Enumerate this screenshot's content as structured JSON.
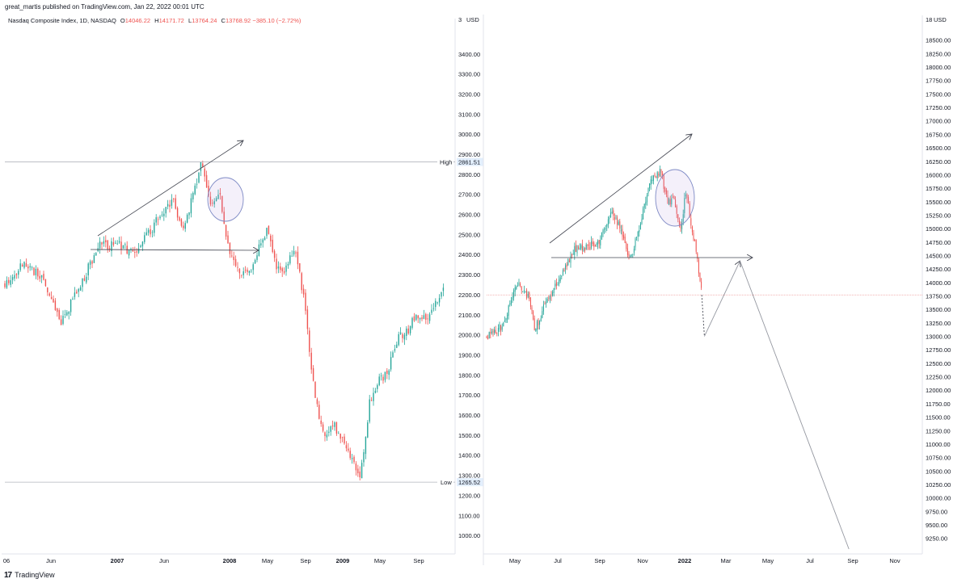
{
  "header": {
    "published": "great_martis published on TradingView.com, Jan 22, 2022 00:01 UTC"
  },
  "symbol": {
    "name": "Nasdaq Composite Index, 1D, NASDAQ",
    "o_label": "O",
    "o_value": "14046.22",
    "h_label": "H",
    "h_value": "14171.72",
    "l_label": "L",
    "l_value": "13764.24",
    "c_label": "C",
    "c_value": "13768.92",
    "change": "−385.10 (−2.72%)"
  },
  "footer": {
    "logo": "17",
    "brand": "TradingView"
  },
  "chart_data": [
    {
      "type": "line",
      "x_unit": "date",
      "y_unit": "USD",
      "ylim": [
        920,
        3560
      ],
      "x_ticks": [
        "06",
        "Jun",
        "2007",
        "Jun",
        "2008",
        "May",
        "Sep",
        "2009",
        "May",
        "Sep"
      ],
      "y_ticks": [
        "1000.00",
        "1100.00",
        "1200.00",
        "1300.00",
        "1400.00",
        "1500.00",
        "1600.00",
        "1700.00",
        "1800.00",
        "1900.00",
        "2000.00",
        "2100.00",
        "2200.00",
        "2300.00",
        "2400.00",
        "2500.00",
        "2600.00",
        "2700.00",
        "2800.00",
        "2900.00",
        "3000.00",
        "3100.00",
        "3200.00",
        "3300.00",
        "3400.00"
      ],
      "currency_label": "USD",
      "top_tick_partial": "3",
      "high_label": "High",
      "high_value": "2861.51",
      "low_label": "Low",
      "low_value": "1265.52",
      "series": [
        {
          "x": [
            "2006-01",
            "2006-03",
            "2006-05",
            "2006-07",
            "2006-09",
            "2006-11",
            "2007-01",
            "2007-03",
            "2007-05",
            "2007-07",
            "2007-08",
            "2007-10",
            "2007-11",
            "2007-12",
            "2008-01",
            "2008-02",
            "2008-03",
            "2008-04",
            "2008-05",
            "2008-06",
            "2008-07",
            "2008-08",
            "2008-09",
            "2008-10",
            "2008-11",
            "2008-12",
            "2009-01",
            "2009-03",
            "2009-04",
            "2009-05",
            "2009-06",
            "2009-07",
            "2009-08",
            "2009-09",
            "2009-10",
            "2009-11",
            "2009-12"
          ],
          "y": [
            2250,
            2360,
            2280,
            2060,
            2240,
            2440,
            2450,
            2400,
            2550,
            2680,
            2500,
            2850,
            2650,
            2700,
            2400,
            2320,
            2300,
            2420,
            2520,
            2330,
            2330,
            2450,
            2150,
            1720,
            1500,
            1560,
            1480,
            1290,
            1680,
            1770,
            1830,
            1980,
            2020,
            2100,
            2080,
            2160,
            2260
          ]
        }
      ]
    },
    {
      "type": "line",
      "x_unit": "date",
      "y_unit": "USD",
      "ylim": [
        9050,
        18900
      ],
      "x_ticks": [
        "May",
        "Jul",
        "Sep",
        "Nov",
        "2022",
        "Mar",
        "May",
        "Jul",
        "Sep",
        "Nov"
      ],
      "y_ticks": [
        "9250.00",
        "9500.00",
        "9750.00",
        "10000.00",
        "10250.00",
        "10500.00",
        "10750.00",
        "11000.00",
        "11250.00",
        "11500.00",
        "11750.00",
        "12000.00",
        "12250.00",
        "12500.00",
        "12750.00",
        "13000.00",
        "13250.00",
        "13500.00",
        "13750.00",
        "14000.00",
        "14250.00",
        "14500.00",
        "14750.00",
        "15000.00",
        "15250.00",
        "15500.00",
        "15750.00",
        "16000.00",
        "16250.00",
        "16500.00",
        "16750.00",
        "17000.00",
        "17250.00",
        "17500.00",
        "17750.00",
        "18000.00",
        "18250.00",
        "18500.00"
      ],
      "currency_label": "USD",
      "top_tick_partial": "18",
      "current_price": 13768.92,
      "series": [
        {
          "x": [
            "2021-03-01",
            "2021-03-25",
            "2021-04-15",
            "2021-05-05",
            "2021-05-13",
            "2021-06-01",
            "2021-06-20",
            "2021-07-10",
            "2021-08-01",
            "2021-08-20",
            "2021-09-07",
            "2021-09-20",
            "2021-10-04",
            "2021-10-20",
            "2021-11-05",
            "2021-11-20",
            "2021-12-01",
            "2021-12-10",
            "2021-12-20",
            "2021-12-28",
            "2022-01-05",
            "2022-01-13",
            "2022-01-21"
          ],
          "y": [
            13000,
            13200,
            14000,
            13700,
            13100,
            13700,
            14100,
            14600,
            14650,
            14800,
            15300,
            15000,
            14400,
            15100,
            15950,
            16050,
            15450,
            15600,
            14950,
            15700,
            15100,
            14550,
            13770
          ]
        }
      ],
      "projection": [
        {
          "x": "2022-01-21",
          "y": 13770
        },
        {
          "x": "2022-01-25",
          "y": 13000
        },
        {
          "x": "2022-03-20",
          "y": 14400
        },
        {
          "x": "2022-09-01",
          "y": 9050
        }
      ]
    }
  ]
}
